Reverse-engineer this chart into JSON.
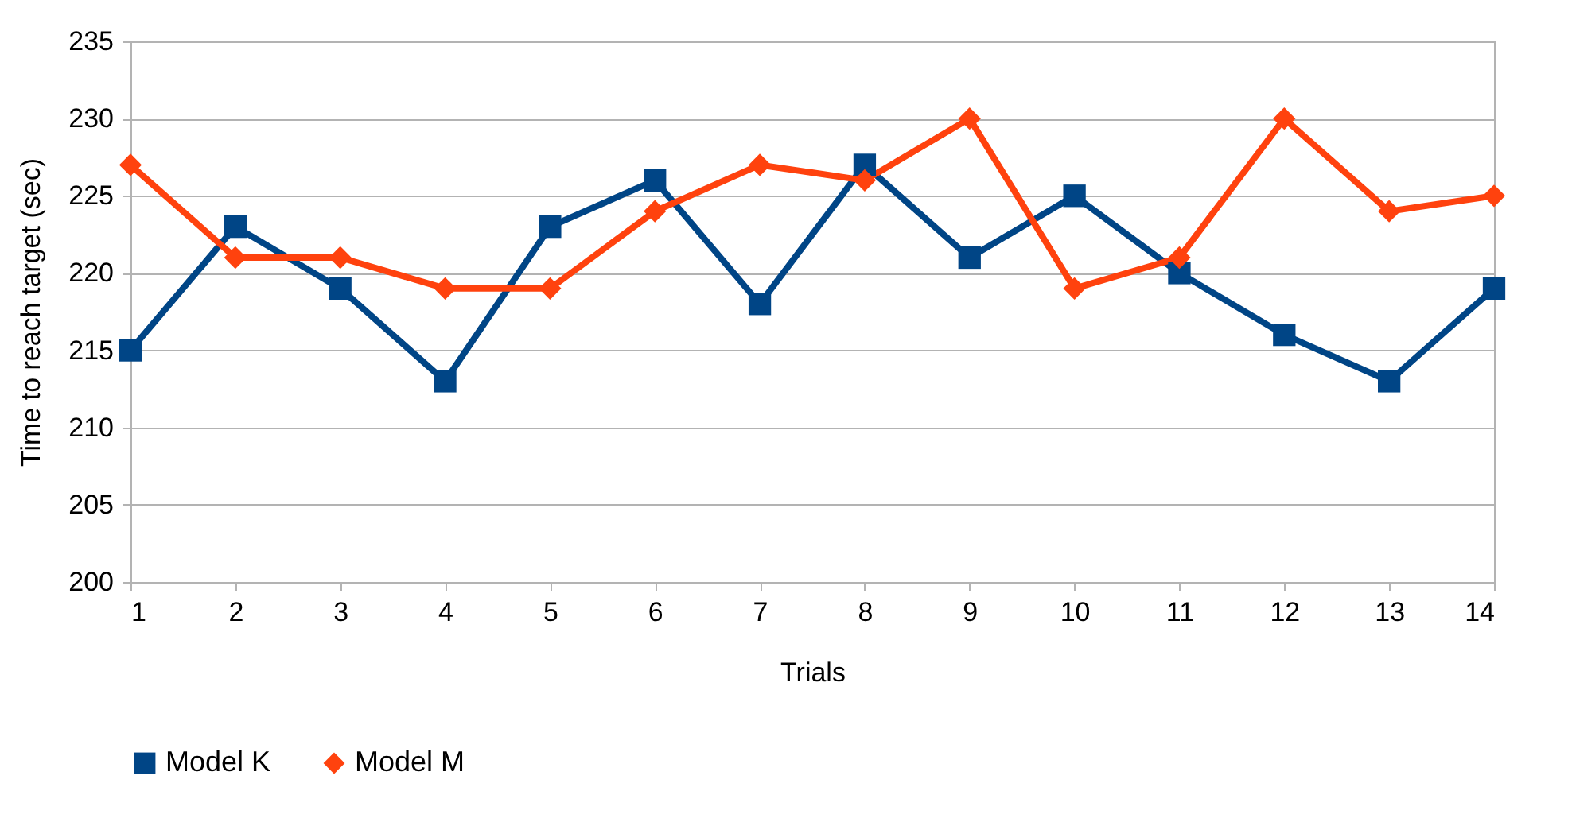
{
  "chart_data": {
    "type": "line",
    "xlabel": "Trials",
    "ylabel": "Time to reach target (sec)",
    "x": [
      1,
      2,
      3,
      4,
      5,
      6,
      7,
      8,
      9,
      10,
      11,
      12,
      13,
      14
    ],
    "xlim": [
      1,
      14
    ],
    "xticks": [
      1,
      2,
      3,
      4,
      5,
      6,
      7,
      8,
      9,
      10,
      11,
      12,
      13,
      14
    ],
    "ylim": [
      200,
      235
    ],
    "yticks": [
      200,
      205,
      210,
      215,
      220,
      225,
      230,
      235
    ],
    "grid": "y",
    "legend": "bottom",
    "line_style": "solid",
    "series": [
      {
        "name": "Model K",
        "color": "#004586",
        "marker": "square",
        "values": [
          215,
          223,
          219,
          213,
          223,
          226,
          218,
          227,
          221,
          225,
          220,
          216,
          213,
          219
        ]
      },
      {
        "name": "Model M",
        "color": "#ff420e",
        "marker": "diamond",
        "values": [
          227,
          221,
          221,
          219,
          219,
          224,
          227,
          226,
          230,
          219,
          221,
          230,
          224,
          225
        ]
      }
    ]
  }
}
